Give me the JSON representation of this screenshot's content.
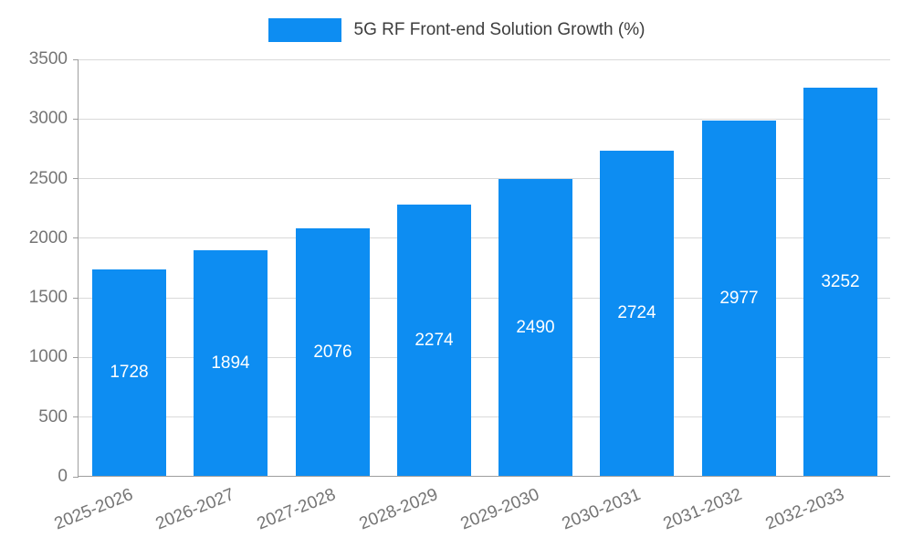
{
  "legend": {
    "label": "5G RF Front-end Solution Growth (%)"
  },
  "colors": {
    "bar": "#0d8df2",
    "grid": "#d9d9d9",
    "axis": "#9e9e9e",
    "tick_label": "#757575",
    "value_label": "#ffffff",
    "title_text": "#3d3d3d",
    "background": "#ffffff"
  },
  "chart_data": {
    "type": "bar",
    "title": "5G RF Front-end Solution Growth (%)",
    "categories": [
      "2025-2026",
      "2026-2027",
      "2027-2028",
      "2028-2029",
      "2029-2030",
      "2030-2031",
      "2031-2032",
      "2032-2033"
    ],
    "values": [
      1728,
      1894,
      2076,
      2274,
      2490,
      2724,
      2977,
      3252
    ],
    "xlabel": "",
    "ylabel": "",
    "ylim": [
      0,
      3500
    ],
    "yticks": [
      0,
      500,
      1000,
      1500,
      2000,
      2500,
      3000,
      3500
    ],
    "grid": true,
    "legend_position": "top",
    "value_labels": "inside-center",
    "x_tick_rotation_deg": -22
  }
}
